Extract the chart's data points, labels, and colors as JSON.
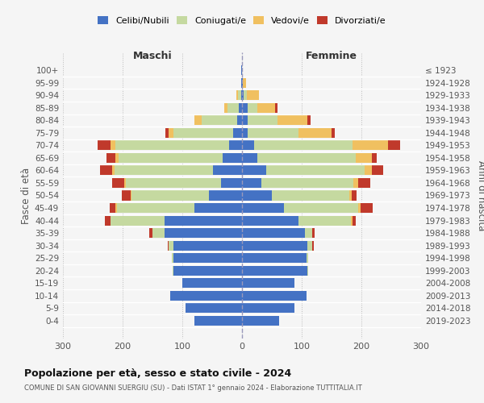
{
  "age_groups": [
    "100+",
    "95-99",
    "90-94",
    "85-89",
    "80-84",
    "75-79",
    "70-74",
    "65-69",
    "60-64",
    "55-59",
    "50-54",
    "45-49",
    "40-44",
    "35-39",
    "30-34",
    "25-29",
    "20-24",
    "15-19",
    "10-14",
    "5-9",
    "0-4"
  ],
  "birth_years": [
    "≤ 1923",
    "1924-1928",
    "1929-1933",
    "1934-1938",
    "1939-1943",
    "1944-1948",
    "1949-1953",
    "1954-1958",
    "1959-1963",
    "1964-1968",
    "1969-1973",
    "1974-1978",
    "1979-1983",
    "1984-1988",
    "1989-1993",
    "1994-1998",
    "1999-2003",
    "2004-2008",
    "2009-2013",
    "2014-2018",
    "2019-2023"
  ],
  "males_celibi": [
    1,
    1,
    2,
    5,
    8,
    15,
    22,
    32,
    48,
    35,
    55,
    80,
    130,
    130,
    115,
    115,
    115,
    100,
    120,
    95,
    80
  ],
  "males_coniugati": [
    0,
    0,
    5,
    20,
    60,
    100,
    190,
    175,
    165,
    160,
    130,
    130,
    90,
    20,
    8,
    3,
    1,
    0,
    0,
    0,
    0
  ],
  "males_vedovi": [
    0,
    0,
    2,
    5,
    12,
    8,
    8,
    5,
    5,
    2,
    2,
    2,
    0,
    0,
    0,
    0,
    0,
    0,
    0,
    0,
    0
  ],
  "males_divorziati": [
    0,
    0,
    0,
    0,
    0,
    5,
    22,
    15,
    20,
    20,
    15,
    10,
    10,
    5,
    2,
    0,
    0,
    0,
    0,
    0,
    0
  ],
  "females_nubili": [
    0,
    2,
    3,
    10,
    10,
    10,
    20,
    25,
    40,
    32,
    50,
    70,
    95,
    105,
    110,
    108,
    110,
    88,
    108,
    88,
    62
  ],
  "females_coniugate": [
    0,
    0,
    5,
    15,
    50,
    85,
    165,
    165,
    165,
    155,
    130,
    125,
    88,
    12,
    8,
    3,
    1,
    0,
    0,
    0,
    0
  ],
  "females_vedove": [
    0,
    5,
    20,
    30,
    50,
    55,
    60,
    28,
    12,
    8,
    4,
    4,
    2,
    0,
    0,
    0,
    0,
    0,
    0,
    0,
    0
  ],
  "females_divorziate": [
    0,
    0,
    0,
    5,
    5,
    5,
    20,
    8,
    20,
    20,
    8,
    20,
    5,
    5,
    2,
    0,
    0,
    0,
    0,
    0,
    0
  ],
  "color_celibi": "#4472c4",
  "color_coniugati": "#c5d9a0",
  "color_vedovi": "#f0c060",
  "color_divorziati": "#c0392b",
  "title": "Popolazione per età, sesso e stato civile - 2024",
  "subtitle": "COMUNE DI SAN GIOVANNI SUERGIU (SU) - Dati ISTAT 1° gennaio 2024 - Elaborazione TUTTITALIA.IT",
  "ylabel_left": "Fasce di età",
  "ylabel_right": "Anni di nascita",
  "header_maschi": "Maschi",
  "header_femmine": "Femmine",
  "xlim": 300,
  "bg_color": "#f5f5f5",
  "legend_labels": [
    "Celibi/Nubili",
    "Coniugati/e",
    "Vedovi/e",
    "Divorziati/e"
  ]
}
